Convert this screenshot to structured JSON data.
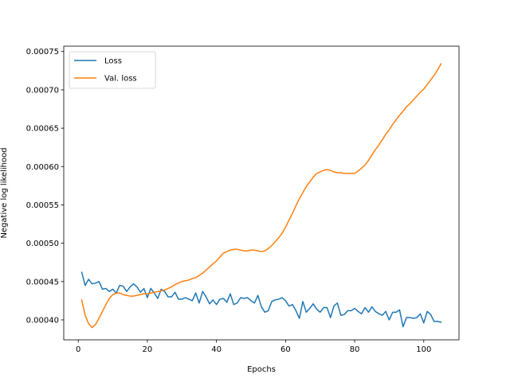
{
  "chart_data": {
    "type": "line",
    "title": "",
    "xlabel": "Epochs",
    "ylabel": "Negative log likelihood",
    "xlim": [
      -4.2,
      110.2
    ],
    "ylim": [
      0.000374,
      0.000757
    ],
    "xticks": [
      0,
      20,
      40,
      60,
      80,
      100
    ],
    "yticks": [
      0.0004,
      0.00045,
      0.0005,
      0.00055,
      0.0006,
      0.00065,
      0.0007,
      0.00075
    ],
    "ytick_labels": [
      "0.00040",
      "0.00045",
      "0.00050",
      "0.00055",
      "0.00060",
      "0.00065",
      "0.00070",
      "0.00075"
    ],
    "grid": false,
    "legend_position": "top-left",
    "x": [
      1,
      2,
      3,
      4,
      5,
      6,
      7,
      8,
      9,
      10,
      11,
      12,
      13,
      14,
      15,
      16,
      17,
      18,
      19,
      20,
      21,
      22,
      23,
      24,
      25,
      26,
      27,
      28,
      29,
      30,
      31,
      32,
      33,
      34,
      35,
      36,
      37,
      38,
      39,
      40,
      41,
      42,
      43,
      44,
      45,
      46,
      47,
      48,
      49,
      50,
      51,
      52,
      53,
      54,
      55,
      56,
      57,
      58,
      59,
      60,
      61,
      62,
      63,
      64,
      65,
      66,
      67,
      68,
      69,
      70,
      71,
      72,
      73,
      74,
      75,
      76,
      77,
      78,
      79,
      80,
      81,
      82,
      83,
      84,
      85,
      86,
      87,
      88,
      89,
      90,
      91,
      92,
      93,
      94,
      95,
      96,
      97,
      98,
      99,
      100,
      101,
      102,
      103,
      104,
      105
    ],
    "series": [
      {
        "name": "Loss",
        "color": "#1f77b4",
        "values": [
          0.000462,
          0.000445,
          0.000453,
          0.000447,
          0.000448,
          0.00045,
          0.00044,
          0.000441,
          0.000437,
          0.00044,
          0.000435,
          0.000445,
          0.000444,
          0.000437,
          0.000443,
          0.000447,
          0.000443,
          0.000436,
          0.000441,
          0.000429,
          0.000441,
          0.000435,
          0.000428,
          0.00044,
          0.000437,
          0.00043,
          0.00043,
          0.000436,
          0.000427,
          0.000427,
          0.000429,
          0.000427,
          0.000425,
          0.000435,
          0.000422,
          0.000437,
          0.00043,
          0.000421,
          0.000426,
          0.00042,
          0.000427,
          0.000428,
          0.000423,
          0.000434,
          0.00042,
          0.000422,
          0.000429,
          0.000428,
          0.000429,
          0.000425,
          0.000422,
          0.000432,
          0.000417,
          0.00041,
          0.000412,
          0.000424,
          0.000426,
          0.000427,
          0.000429,
          0.000425,
          0.000418,
          0.00042,
          0.000412,
          0.000402,
          0.000424,
          0.00041,
          0.000415,
          0.000421,
          0.000414,
          0.00041,
          0.000416,
          0.000416,
          0.000403,
          0.000418,
          0.000422,
          0.000406,
          0.000407,
          0.000412,
          0.000412,
          0.000415,
          0.000411,
          0.000408,
          0.000416,
          0.00041,
          0.000417,
          0.000411,
          0.000408,
          0.000406,
          0.000411,
          0.0004,
          0.00041,
          0.00041,
          0.000413,
          0.000391,
          0.000403,
          0.000403,
          0.000402,
          0.000403,
          0.000408,
          0.000396,
          0.000411,
          0.000407,
          0.000398,
          0.000398,
          0.000397
        ]
      },
      {
        "name": "Val. loss",
        "color": "#ff7f0e",
        "values": [
          0.000426,
          0.000406,
          0.000395,
          0.00039,
          0.000394,
          0.000402,
          0.000411,
          0.00042,
          0.000428,
          0.000433,
          0.000435,
          0.000435,
          0.000433,
          0.000432,
          0.000431,
          0.000431,
          0.000432,
          0.000433,
          0.000434,
          0.000434,
          0.000435,
          0.000436,
          0.000437,
          0.000438,
          0.000439,
          0.000441,
          0.000443,
          0.000446,
          0.000448,
          0.00045,
          0.000451,
          0.000452,
          0.000454,
          0.000455,
          0.000458,
          0.000461,
          0.000465,
          0.000469,
          0.000473,
          0.000477,
          0.000482,
          0.000487,
          0.000489,
          0.000491,
          0.000492,
          0.000492,
          0.000491,
          0.00049,
          0.00049,
          0.000491,
          0.000491,
          0.00049,
          0.000489,
          0.00049,
          0.000493,
          0.000497,
          0.000502,
          0.000507,
          0.000513,
          0.000521,
          0.00053,
          0.000539,
          0.000549,
          0.000558,
          0.000566,
          0.000574,
          0.00058,
          0.000586,
          0.000591,
          0.000593,
          0.000595,
          0.000596,
          0.000595,
          0.000593,
          0.000592,
          0.000592,
          0.000591,
          0.000591,
          0.000591,
          0.000591,
          0.000594,
          0.000598,
          0.000602,
          0.000608,
          0.000615,
          0.000622,
          0.000628,
          0.000635,
          0.000642,
          0.000648,
          0.000655,
          0.000661,
          0.000667,
          0.000672,
          0.000678,
          0.000682,
          0.000687,
          0.000692,
          0.000697,
          0.000701,
          0.000707,
          0.000713,
          0.000719,
          0.000726,
          0.000734
        ]
      }
    ]
  }
}
